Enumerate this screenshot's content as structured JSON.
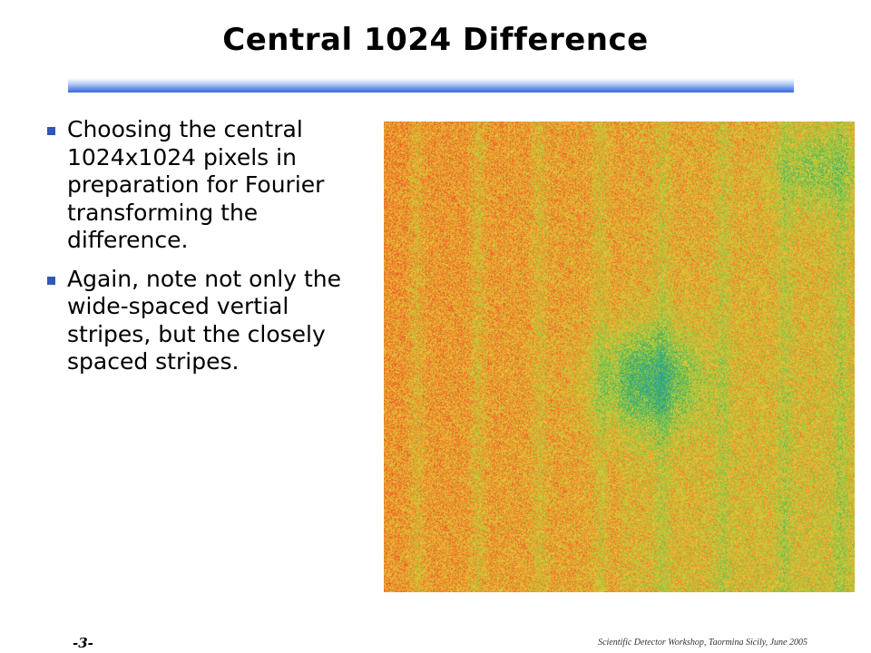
{
  "slide": {
    "title": "Central 1024 Difference",
    "bullets": [
      {
        "text": "Choosing the central 1024x1024 pixels in preparation for Fourier transforming the difference."
      },
      {
        "text": "Again, note not only the wide-spaced vertial stripes, but the closely spaced stripes."
      }
    ]
  },
  "footer": {
    "page_number": "-3-",
    "credit": "Scientific Detector Workshop, Taormina Sicily, June 2005"
  },
  "colors": {
    "title_bar_accent": "#3d6cd6",
    "bullet_marker": "#2f58b8"
  }
}
